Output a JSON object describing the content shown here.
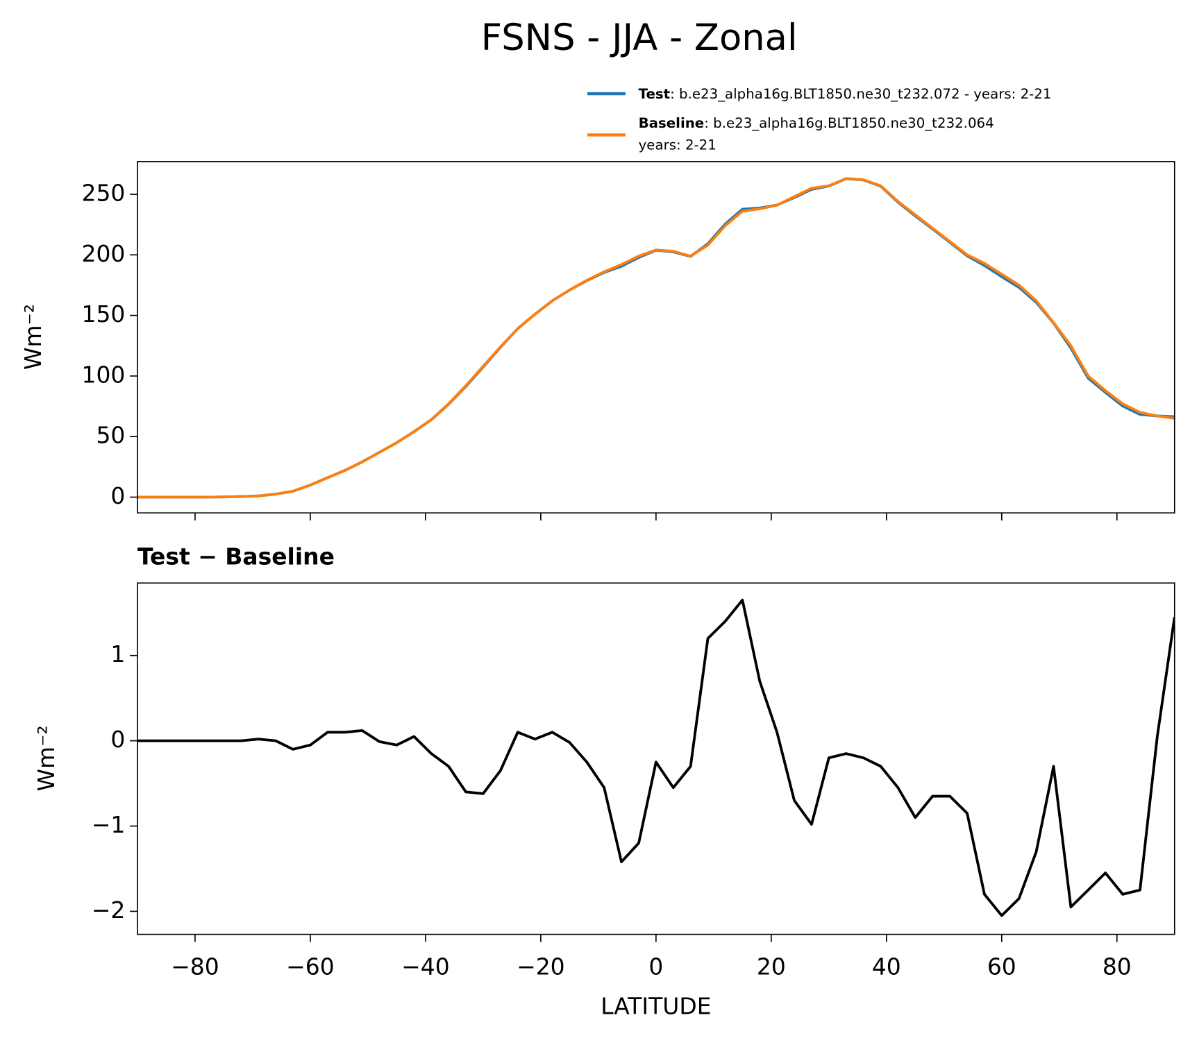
{
  "chart_data": [
    {
      "type": "line",
      "title": "FSNS - JJA - Zonal",
      "ylabel": "Wm⁻²",
      "x": [
        -90,
        -87,
        -84,
        -81,
        -78,
        -75,
        -72,
        -69,
        -66,
        -63,
        -60,
        -57,
        -54,
        -51,
        -48,
        -45,
        -42,
        -39,
        -36,
        -33,
        -30,
        -27,
        -24,
        -21,
        -18,
        -15,
        -12,
        -9,
        -6,
        -3,
        0,
        3,
        6,
        9,
        12,
        15,
        18,
        21,
        24,
        27,
        30,
        33,
        36,
        39,
        42,
        45,
        48,
        51,
        54,
        57,
        60,
        63,
        66,
        69,
        72,
        75,
        78,
        81,
        84,
        87,
        90
      ],
      "xlim": [
        -90,
        90
      ],
      "ylim": [
        -13,
        277
      ],
      "yticks": [
        0,
        50,
        100,
        150,
        200,
        250
      ],
      "series": [
        {
          "name": "Test",
          "label": ": b.e23_alpha16g.BLT1850.ne30_t232.072 - years: 2-21",
          "color": "#1f77b4",
          "values": [
            0,
            0,
            0,
            0,
            0,
            0.2,
            0.5,
            1.02,
            2.5,
            4.9,
            9.95,
            16.1,
            22.1,
            29.12,
            36.99,
            44.95,
            54.05,
            63.85,
            76.7,
            91.4,
            107.38,
            123.65,
            139.1,
            151.02,
            162.1,
            170.98,
            178.75,
            185.45,
            190.58,
            197.8,
            203.75,
            202.45,
            198.7,
            209.2,
            225.4,
            237.65,
            238.7,
            241.1,
            247.3,
            254.02,
            256.8,
            262.85,
            261.8,
            256.7,
            243.45,
            232.1,
            221.35,
            210.35,
            199.15,
            191.2,
            181.95,
            173.15,
            160.7,
            143.7,
            123.05,
            98.25,
            86.45,
            75.2,
            68.25,
            67.05,
            66.45
          ]
        },
        {
          "name": "Baseline",
          "label_lines": [
            ": b.e23_alpha16g.BLT1850.ne30_t232.064",
            "years: 2-21"
          ],
          "color": "#ff7f0e",
          "values": [
            0,
            0,
            0,
            0,
            0,
            0.2,
            0.5,
            1,
            2.5,
            5,
            10,
            16,
            22,
            29,
            37,
            45,
            54,
            64,
            77,
            92,
            108,
            124,
            139,
            151,
            162,
            171,
            179,
            186,
            192,
            199,
            204,
            203,
            199,
            208,
            224,
            236,
            238,
            241,
            248,
            255,
            257,
            263,
            262,
            257,
            244,
            233,
            222,
            211,
            200,
            193,
            184,
            175,
            162,
            144,
            125,
            100,
            88,
            77,
            70,
            67,
            65
          ]
        }
      ]
    },
    {
      "type": "line",
      "title": "Test − Baseline",
      "xlabel": "LATITUDE",
      "ylabel": "Wm⁻²",
      "x": [
        -90,
        -87,
        -84,
        -81,
        -78,
        -75,
        -72,
        -69,
        -66,
        -63,
        -60,
        -57,
        -54,
        -51,
        -48,
        -45,
        -42,
        -39,
        -36,
        -33,
        -30,
        -27,
        -24,
        -21,
        -18,
        -15,
        -12,
        -9,
        -6,
        -3,
        0,
        3,
        6,
        9,
        12,
        15,
        18,
        21,
        24,
        27,
        30,
        33,
        36,
        39,
        42,
        45,
        48,
        51,
        54,
        57,
        60,
        63,
        66,
        69,
        72,
        75,
        78,
        81,
        84,
        87,
        90
      ],
      "xlim": [
        -90,
        90
      ],
      "ylim": [
        -2.27,
        1.85
      ],
      "xticks": [
        {
          "value": -80,
          "label": "−80"
        },
        {
          "value": -60,
          "label": "−60"
        },
        {
          "value": -40,
          "label": "−40"
        },
        {
          "value": -20,
          "label": "−20"
        },
        0,
        20,
        40,
        60,
        80
      ],
      "yticks": [
        {
          "value": -2,
          "label": "−2"
        },
        {
          "value": -1,
          "label": "−1"
        },
        0,
        1
      ],
      "series": [
        {
          "color": "#000000",
          "values": [
            0,
            0,
            0,
            0,
            0,
            0,
            0,
            0.02,
            0,
            -0.1,
            -0.05,
            0.1,
            0.1,
            0.12,
            -0.01,
            -0.05,
            0.05,
            -0.15,
            -0.3,
            -0.6,
            -0.62,
            -0.35,
            0.1,
            0.02,
            0.1,
            -0.02,
            -0.25,
            -0.55,
            -1.42,
            -1.2,
            -0.25,
            -0.55,
            -0.3,
            1.2,
            1.4,
            1.65,
            0.7,
            0.1,
            -0.7,
            -0.98,
            -0.2,
            -0.15,
            -0.2,
            -0.3,
            -0.55,
            -0.9,
            -0.65,
            -0.65,
            -0.85,
            -1.8,
            -2.05,
            -1.85,
            -1.3,
            -0.3,
            -1.95,
            -1.75,
            -1.55,
            -1.8,
            -1.75,
            0.05,
            1.45
          ]
        }
      ]
    }
  ]
}
